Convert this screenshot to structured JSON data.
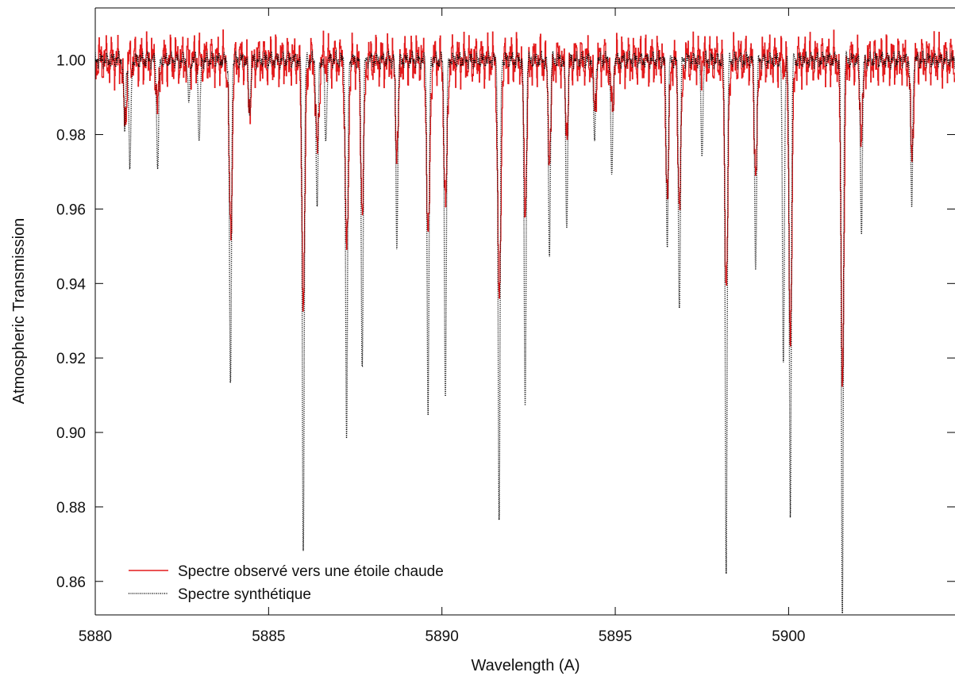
{
  "chart_data": {
    "type": "line",
    "title": "",
    "xlabel": "Wavelength (A)",
    "ylabel": "Atmospheric Transmission",
    "xlim": [
      5880,
      5904.8
    ],
    "ylim": [
      0.851,
      1.014
    ],
    "xticks": [
      5880,
      5885,
      5890,
      5895,
      5900
    ],
    "yticks": [
      0.86,
      0.88,
      0.9,
      0.92,
      0.94,
      0.96,
      0.98,
      1.0
    ],
    "xtick_labels": [
      "5880",
      "5885",
      "5890",
      "5895",
      "5900"
    ],
    "ytick_labels": [
      "0.86",
      "0.88",
      "0.90",
      "0.92",
      "0.94",
      "0.96",
      "0.98",
      "1.00"
    ],
    "grid": false,
    "legend_position": "bottom-left",
    "baseline": 1.0,
    "series": [
      {
        "name": "Spectre observé vers une étoile chaude",
        "color": "#e31a1c",
        "style": "solid",
        "lines": [
          {
            "center": 5880.85,
            "depth": 0.016
          },
          {
            "center": 5881.8,
            "depth": 0.012
          },
          {
            "center": 5883.9,
            "depth": 0.046
          },
          {
            "center": 5884.45,
            "depth": 0.012
          },
          {
            "center": 5886.0,
            "depth": 0.064
          },
          {
            "center": 5886.4,
            "depth": 0.025
          },
          {
            "center": 5887.25,
            "depth": 0.053
          },
          {
            "center": 5887.7,
            "depth": 0.04
          },
          {
            "center": 5888.7,
            "depth": 0.023
          },
          {
            "center": 5889.6,
            "depth": 0.05
          },
          {
            "center": 5890.1,
            "depth": 0.04
          },
          {
            "center": 5891.65,
            "depth": 0.067
          },
          {
            "center": 5892.4,
            "depth": 0.038
          },
          {
            "center": 5893.1,
            "depth": 0.025
          },
          {
            "center": 5893.6,
            "depth": 0.018
          },
          {
            "center": 5894.4,
            "depth": 0.012
          },
          {
            "center": 5894.9,
            "depth": 0.012
          },
          {
            "center": 5896.5,
            "depth": 0.035
          },
          {
            "center": 5896.85,
            "depth": 0.039
          },
          {
            "center": 5898.2,
            "depth": 0.061
          },
          {
            "center": 5899.05,
            "depth": 0.03
          },
          {
            "center": 5900.05,
            "depth": 0.074
          },
          {
            "center": 5901.55,
            "depth": 0.083
          },
          {
            "center": 5902.1,
            "depth": 0.02
          },
          {
            "center": 5903.55,
            "depth": 0.024
          }
        ]
      },
      {
        "name": "Spectre synthétique",
        "color": "#000000",
        "style": "dotted",
        "lines": [
          {
            "center": 5880.85,
            "depth": 0.019
          },
          {
            "center": 5881.0,
            "depth": 0.03
          },
          {
            "center": 5881.8,
            "depth": 0.029
          },
          {
            "center": 5882.7,
            "depth": 0.012
          },
          {
            "center": 5883.0,
            "depth": 0.022
          },
          {
            "center": 5883.9,
            "depth": 0.089
          },
          {
            "center": 5884.45,
            "depth": 0.015
          },
          {
            "center": 5886.0,
            "depth": 0.131
          },
          {
            "center": 5886.4,
            "depth": 0.041
          },
          {
            "center": 5886.65,
            "depth": 0.022
          },
          {
            "center": 5887.25,
            "depth": 0.101
          },
          {
            "center": 5887.7,
            "depth": 0.083
          },
          {
            "center": 5888.7,
            "depth": 0.049
          },
          {
            "center": 5889.6,
            "depth": 0.094
          },
          {
            "center": 5890.1,
            "depth": 0.091
          },
          {
            "center": 5891.65,
            "depth": 0.124
          },
          {
            "center": 5892.4,
            "depth": 0.093
          },
          {
            "center": 5893.1,
            "depth": 0.051
          },
          {
            "center": 5893.6,
            "depth": 0.045
          },
          {
            "center": 5894.4,
            "depth": 0.022
          },
          {
            "center": 5894.9,
            "depth": 0.032
          },
          {
            "center": 5896.5,
            "depth": 0.05
          },
          {
            "center": 5896.85,
            "depth": 0.067
          },
          {
            "center": 5897.5,
            "depth": 0.025
          },
          {
            "center": 5898.2,
            "depth": 0.136
          },
          {
            "center": 5899.05,
            "depth": 0.056
          },
          {
            "center": 5899.85,
            "depth": 0.081
          },
          {
            "center": 5900.05,
            "depth": 0.121
          },
          {
            "center": 5901.55,
            "depth": 0.149
          },
          {
            "center": 5902.1,
            "depth": 0.046
          },
          {
            "center": 5903.55,
            "depth": 0.04
          }
        ]
      }
    ]
  }
}
